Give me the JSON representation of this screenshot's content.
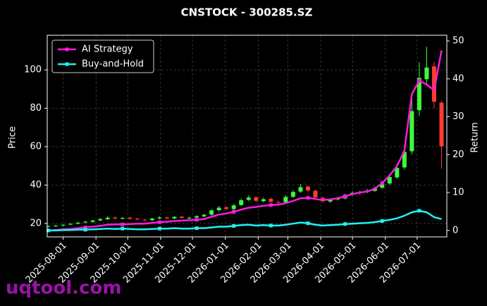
{
  "chart_data": {
    "type": "candlestick",
    "title": "CNSTOCK - 300285.SZ",
    "y_label": "Price",
    "y2_label": "Return",
    "x": [
      "2025-07-18",
      "2025-07-25",
      "2025-08-01",
      "2025-08-08",
      "2025-08-15",
      "2025-08-22",
      "2025-08-29",
      "2025-09-05",
      "2025-09-12",
      "2025-09-19",
      "2025-09-26",
      "2025-10-03",
      "2025-10-10",
      "2025-10-17",
      "2025-10-24",
      "2025-10-31",
      "2025-11-07",
      "2025-11-14",
      "2025-11-21",
      "2025-11-28",
      "2025-12-05",
      "2025-12-12",
      "2025-12-19",
      "2025-12-26",
      "2026-01-02",
      "2026-01-09",
      "2026-01-16",
      "2026-01-23",
      "2026-01-30",
      "2026-02-06",
      "2026-02-13",
      "2026-02-20",
      "2026-02-27",
      "2026-03-06",
      "2026-03-13",
      "2026-03-20",
      "2026-03-27",
      "2026-04-03",
      "2026-04-10",
      "2026-04-17",
      "2026-04-24",
      "2026-05-01",
      "2026-05-08",
      "2026-05-15",
      "2026-05-22",
      "2026-05-29",
      "2026-06-05",
      "2026-06-12",
      "2026-06-19",
      "2026-06-26",
      "2026-07-03",
      "2026-07-10",
      "2026-07-17",
      "2026-07-24"
    ],
    "open": [
      18.3,
      18.6,
      18.9,
      19.4,
      19.9,
      20.5,
      20.8,
      21.6,
      22.2,
      23.1,
      22.5,
      23.0,
      22.5,
      22.0,
      21.7,
      22.6,
      23.2,
      22.6,
      23.5,
      22.8,
      23.1,
      23.7,
      24.6,
      26.9,
      28.4,
      27.5,
      29.6,
      32.3,
      33.6,
      31.6,
      32.8,
      31.1,
      31.0,
      33.9,
      36.6,
      39.2,
      37.0,
      33.3,
      31.4,
      32.5,
      33.0,
      35.0,
      35.8,
      36.4,
      37.0,
      38.6,
      40.8,
      44.0,
      49.2,
      57.6,
      79.0,
      95.1,
      101.8,
      82.9
    ],
    "high": [
      19.0,
      19.3,
      19.7,
      20.2,
      20.8,
      21.3,
      22.0,
      22.9,
      23.8,
      23.6,
      23.4,
      23.6,
      23.0,
      22.5,
      23.0,
      23.8,
      23.6,
      24.0,
      24.1,
      23.6,
      24.3,
      25.1,
      27.5,
      29.1,
      29.0,
      30.2,
      33.0,
      34.6,
      34.2,
      33.5,
      33.6,
      32.0,
      34.7,
      37.3,
      40.5,
      39.8,
      37.8,
      34.2,
      33.1,
      33.8,
      35.5,
      36.8,
      37.0,
      37.9,
      39.2,
      41.8,
      45.6,
      51.2,
      61.0,
      86.0,
      104.0,
      112.0,
      104.0,
      84.0
    ],
    "low": [
      17.9,
      18.2,
      18.6,
      19.0,
      19.5,
      20.1,
      20.4,
      21.1,
      21.8,
      22.1,
      22.0,
      22.0,
      21.6,
      21.3,
      21.2,
      22.2,
      22.3,
      22.2,
      22.5,
      22.3,
      22.7,
      23.3,
      24.1,
      26.2,
      27.0,
      26.9,
      29.0,
      31.6,
      31.2,
      31.0,
      30.8,
      30.2,
      30.5,
      33.2,
      35.9,
      36.5,
      33.0,
      31.0,
      30.8,
      31.9,
      32.6,
      34.5,
      35.1,
      35.8,
      36.5,
      38.0,
      40.1,
      43.2,
      48.1,
      56.0,
      76.0,
      92.0,
      80.0,
      48.5
    ],
    "close": [
      18.6,
      18.9,
      19.3,
      19.8,
      20.4,
      20.9,
      21.5,
      22.3,
      23.0,
      22.6,
      22.9,
      22.4,
      22.1,
      21.8,
      22.5,
      23.1,
      22.7,
      23.4,
      22.9,
      23.0,
      23.8,
      24.5,
      26.8,
      28.2,
      27.6,
      29.4,
      32.1,
      33.5,
      31.8,
      32.6,
      31.2,
      30.9,
      33.8,
      36.4,
      38.9,
      37.2,
      33.5,
      31.6,
      32.4,
      33.1,
      34.8,
      35.9,
      36.2,
      37.1,
      38.4,
      40.6,
      44.2,
      48.9,
      57.3,
      78.5,
      95.8,
      101.2,
      83.4,
      60.2
    ],
    "up_color": "#39ff3a",
    "down_color": "#ff3b30",
    "series": [
      {
        "name": "AI Strategy",
        "color": "#ff1adf",
        "axis": "y2",
        "values": [
          0.0,
          0.1,
          0.3,
          0.4,
          0.6,
          0.8,
          1.0,
          1.2,
          1.5,
          1.6,
          1.6,
          1.7,
          1.8,
          1.8,
          2.0,
          2.2,
          2.3,
          2.5,
          2.6,
          2.7,
          2.8,
          3.0,
          3.6,
          4.2,
          4.5,
          4.9,
          5.5,
          6.0,
          6.2,
          6.5,
          6.7,
          6.8,
          7.2,
          7.8,
          8.5,
          8.6,
          8.3,
          8.0,
          8.2,
          8.5,
          9.0,
          9.6,
          10.0,
          10.3,
          11.0,
          12.5,
          14.5,
          17.0,
          21.0,
          36.0,
          39.5,
          38.5,
          37.0,
          47.5
        ]
      },
      {
        "name": "Buy-and-Hold",
        "color": "#1ff2f2",
        "axis": "y2",
        "values": [
          0.0,
          0.0,
          0.1,
          0.1,
          0.2,
          0.2,
          0.3,
          0.4,
          0.5,
          0.4,
          0.5,
          0.4,
          0.3,
          0.3,
          0.4,
          0.5,
          0.5,
          0.6,
          0.5,
          0.5,
          0.6,
          0.6,
          0.8,
          1.0,
          1.0,
          1.2,
          1.4,
          1.5,
          1.3,
          1.4,
          1.3,
          1.3,
          1.5,
          1.8,
          2.1,
          1.9,
          1.5,
          1.3,
          1.4,
          1.5,
          1.7,
          1.8,
          1.9,
          2.0,
          2.2,
          2.5,
          2.8,
          3.2,
          3.9,
          4.8,
          5.2,
          4.8,
          3.5,
          3.0
        ]
      }
    ],
    "xlim": [
      "2025-07-17",
      "2026-07-29"
    ],
    "xticks": [
      "2025-08-01",
      "2025-09-01",
      "2025-10-01",
      "2025-11-01",
      "2025-12-01",
      "2026-01-01",
      "2026-02-01",
      "2026-03-01",
      "2026-04-01",
      "2026-05-01",
      "2026-06-01",
      "2026-07-01"
    ],
    "ylim": [
      13,
      118
    ],
    "yticks": [
      20,
      40,
      60,
      80,
      100
    ],
    "y2lim": [
      -1.7,
      51.5
    ],
    "y2ticks": [
      0,
      10,
      20,
      30,
      40,
      50
    ],
    "grid": true,
    "legend": "upper left"
  },
  "watermark": "uqtool.com"
}
